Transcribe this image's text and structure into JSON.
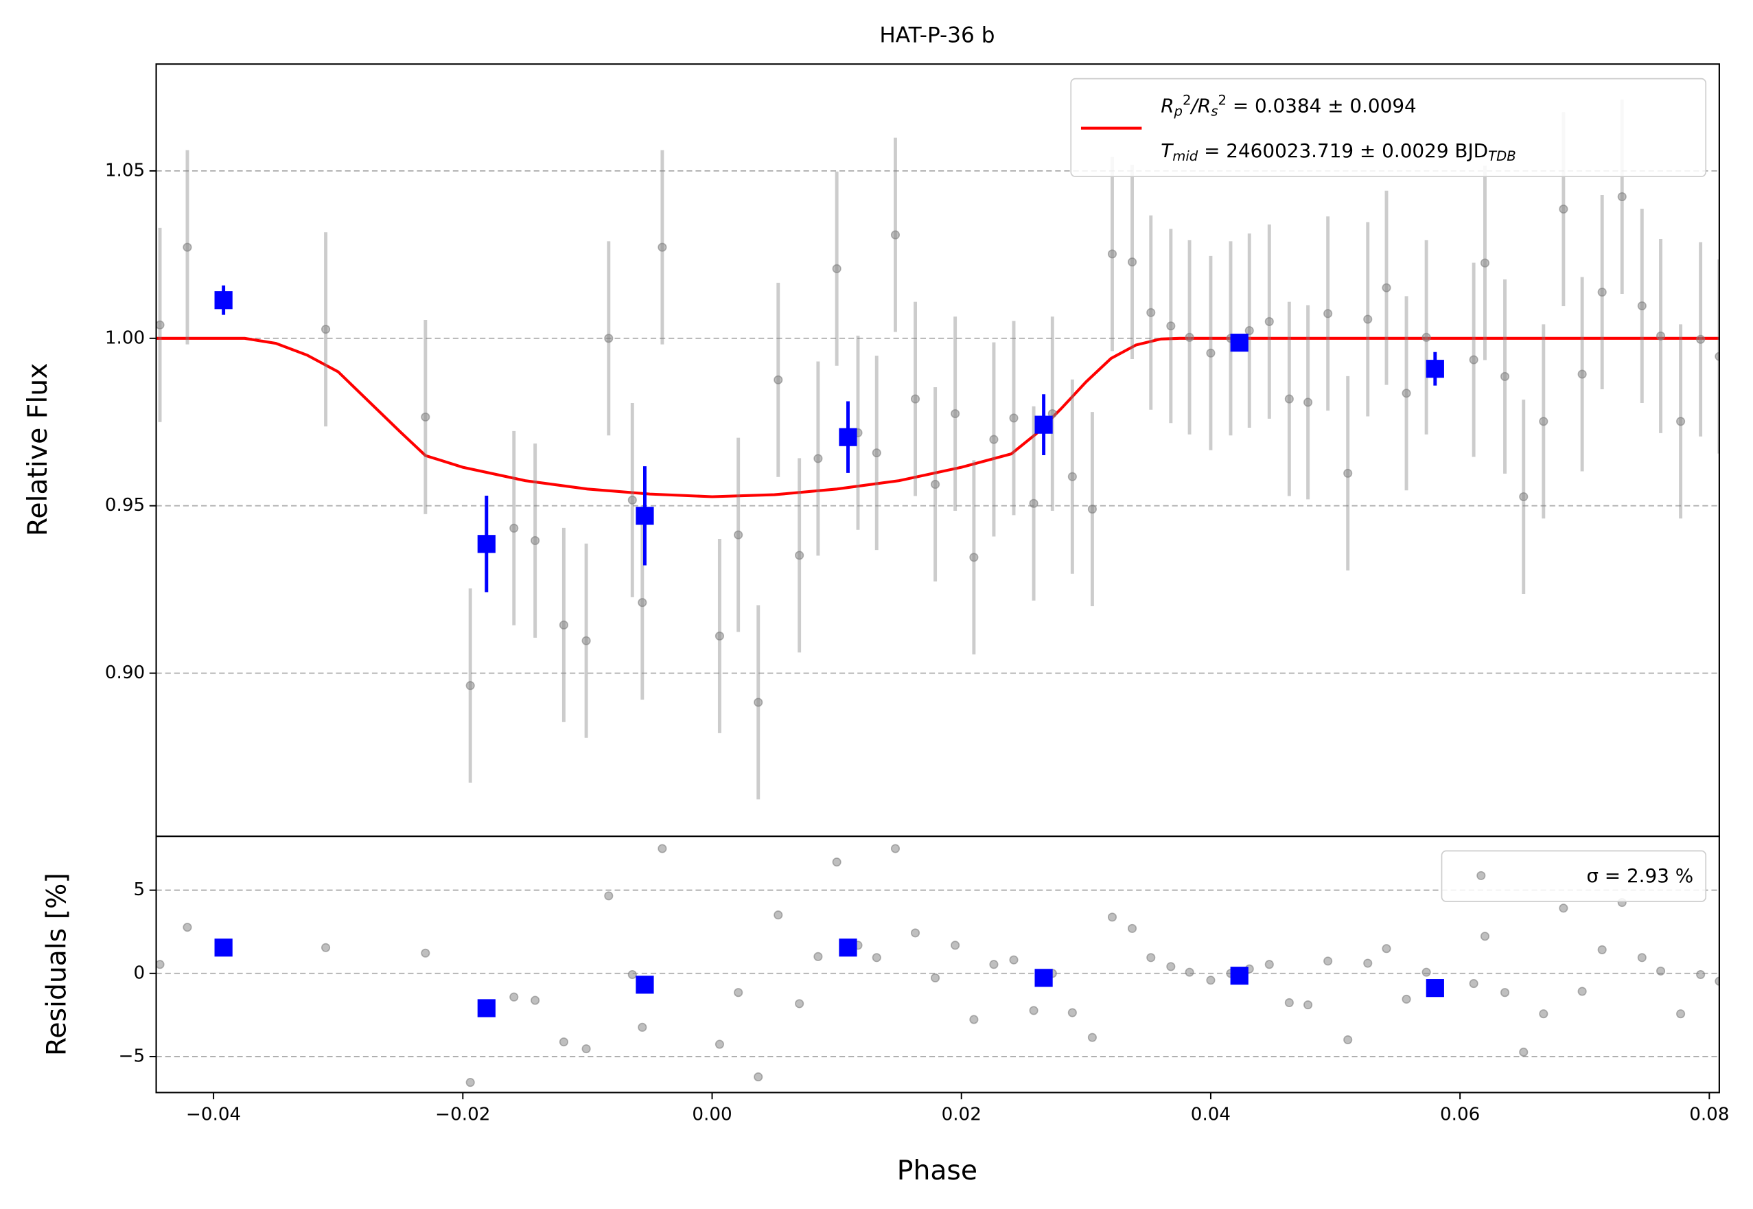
{
  "chart_data": [
    {
      "type": "scatter",
      "title": "HAT-P-36 b",
      "ylabel": "Relative Flux",
      "xlim": [
        -0.0446,
        0.0808
      ],
      "ylim": [
        0.8513,
        1.0819
      ],
      "yticks": [
        {
          "value": 0.9,
          "label": "0.90"
        },
        {
          "value": 0.95,
          "label": "0.95"
        },
        {
          "value": 1.0,
          "label": "1.00"
        },
        {
          "value": 1.05,
          "label": "1.05"
        }
      ],
      "grid": true,
      "legend_loc": "upper right",
      "series": [
        {
          "kind": "line",
          "color": "#ff0000",
          "name_lines": [
            [
              {
                "text": "R"
              },
              {
                "text": "p",
                "script": "sub"
              },
              {
                "text": "2",
                "script": "sup"
              },
              {
                "text": "/R"
              },
              {
                "text": "s",
                "script": "sub"
              },
              {
                "text": "2",
                "script": "sup"
              },
              {
                "text": " = 0.0384 ± 0.0094"
              }
            ],
            [
              {
                "text": "T"
              },
              {
                "text": "mid",
                "script": "sub"
              },
              {
                "text": " = 2460023.719 ± 0.0029 BJD"
              },
              {
                "text": "TDB",
                "script": "sub"
              }
            ]
          ],
          "x": [
            -0.0446,
            -0.0375,
            -0.035,
            -0.0325,
            -0.03,
            -0.0275,
            -0.025,
            -0.023,
            -0.02,
            -0.015,
            -0.01,
            -0.005,
            0,
            0.005,
            0.01,
            0.015,
            0.02,
            0.024,
            0.026,
            0.028,
            0.03,
            0.032,
            0.034,
            0.036,
            0.0375,
            0.0808
          ],
          "values": [
            1,
            1,
            0.9985,
            0.995,
            0.99,
            0.981,
            0.972,
            0.965,
            0.9615,
            0.9575,
            0.955,
            0.9535,
            0.9527,
            0.9533,
            0.955,
            0.9575,
            0.9615,
            0.9655,
            0.9715,
            0.979,
            0.987,
            0.994,
            0.998,
            0.9998,
            1,
            1
          ]
        },
        {
          "kind": "points",
          "color": "#808080",
          "x": [
            -0.0443,
            -0.0421,
            -0.031,
            -0.023,
            -0.0194,
            -0.0159,
            -0.0142,
            -0.0119,
            -0.0101,
            -0.0083,
            -0.0064,
            -0.0056,
            -0.004,
            0.0006,
            0.0021,
            0.0037,
            0.0053,
            0.007,
            0.0085,
            0.01,
            0.0117,
            0.0132,
            0.0147,
            0.0163,
            0.0179,
            0.0195,
            0.021,
            0.0226,
            0.0242,
            0.0258,
            0.0273,
            0.0289,
            0.0305,
            0.0321,
            0.0337,
            0.0352,
            0.0368,
            0.0383,
            0.04,
            0.0416,
            0.0431,
            0.0447,
            0.0463,
            0.0478,
            0.0494,
            0.051,
            0.0526,
            0.0541,
            0.0557,
            0.0573,
            0.0611,
            0.062,
            0.0636,
            0.0651,
            0.0667,
            0.0683,
            0.0698,
            0.0714,
            0.073,
            0.0746,
            0.0761,
            0.0777,
            0.0793,
            0.0808
          ],
          "values": [
            1.004,
            1.0272,
            1.0027,
            0.9765,
            0.8963,
            0.9433,
            0.9396,
            0.9144,
            0.9097,
            1.0,
            0.9517,
            0.9211,
            1.0272,
            0.9111,
            0.9413,
            0.8913,
            0.9876,
            0.9352,
            0.9641,
            1.0208,
            0.9718,
            0.9658,
            1.0309,
            0.9819,
            0.9564,
            0.9775,
            0.9346,
            0.9698,
            0.9762,
            0.9507,
            0.9775,
            0.9587,
            0.949,
            1.0252,
            1.0228,
            1.0077,
            1.0037,
            1.0003,
            0.9956,
            1.0,
            1.0023,
            1.005,
            0.9819,
            0.9809,
            1.0074,
            0.9597,
            1.0057,
            1.0151,
            0.9836,
            1.0003,
            0.9936,
            1.0225,
            0.9886,
            0.9527,
            0.9752,
            1.0386,
            0.9893,
            1.0138,
            1.0423,
            1.0097,
            1.0007,
            0.9752,
            0.9997,
            0.9946
          ],
          "errors": [
            0.029,
            0.029,
            0.029,
            0.029,
            0.029,
            0.029,
            0.029,
            0.029,
            0.029,
            0.029,
            0.029,
            0.029,
            0.029,
            0.029,
            0.029,
            0.029,
            0.029,
            0.029,
            0.029,
            0.029,
            0.029,
            0.029,
            0.029,
            0.029,
            0.029,
            0.029,
            0.029,
            0.029,
            0.029,
            0.029,
            0.029,
            0.029,
            0.029,
            0.029,
            0.029,
            0.029,
            0.029,
            0.029,
            0.029,
            0.029,
            0.029,
            0.029,
            0.029,
            0.029,
            0.029,
            0.029,
            0.029,
            0.029,
            0.029,
            0.029,
            0.029,
            0.029,
            0.029,
            0.029,
            0.029,
            0.029,
            0.029,
            0.029,
            0.029,
            0.029,
            0.029,
            0.029,
            0.029,
            0.029
          ]
        },
        {
          "kind": "binned",
          "color": "#0000ff",
          "x": [
            -0.0392,
            -0.0181,
            -0.0054,
            0.0109,
            0.0266,
            0.0423,
            0.058
          ],
          "values": [
            1.0114,
            0.9386,
            0.947,
            0.9705,
            0.9742,
            0.9987,
            0.9909
          ],
          "errors": [
            0.0044,
            0.0144,
            0.0148,
            0.0107,
            0.0091,
            0.002,
            0.005
          ]
        }
      ]
    },
    {
      "type": "scatter",
      "xlabel": "Phase",
      "ylabel": "Residuals [%]",
      "xlim": [
        -0.0446,
        0.0808
      ],
      "ylim": [
        -7.16,
        8.24
      ],
      "xticks": [
        {
          "value": -0.04,
          "label": "−0.04"
        },
        {
          "value": -0.02,
          "label": "−0.02"
        },
        {
          "value": 0,
          "label": "0.00"
        },
        {
          "value": 0.02,
          "label": "0.02"
        },
        {
          "value": 0.04,
          "label": "0.04"
        },
        {
          "value": 0.06,
          "label": "0.06"
        },
        {
          "value": 0.08,
          "label": "0.08"
        }
      ],
      "yticks": [
        {
          "value": -5,
          "label": "−5"
        },
        0,
        5
      ],
      "grid": true,
      "legend_loc": "upper right",
      "series": [
        {
          "kind": "points",
          "name": "σ = 2.93 %",
          "color": "#808080",
          "x": [
            -0.0443,
            -0.0421,
            -0.031,
            -0.023,
            -0.0194,
            -0.0159,
            -0.0142,
            -0.0119,
            -0.0101,
            -0.0083,
            -0.0064,
            -0.0056,
            -0.004,
            0.0006,
            0.0021,
            0.0037,
            0.0053,
            0.007,
            0.0085,
            0.01,
            0.0117,
            0.0132,
            0.0147,
            0.0163,
            0.0179,
            0.0195,
            0.021,
            0.0226,
            0.0242,
            0.0258,
            0.0273,
            0.0289,
            0.0305,
            0.0321,
            0.0337,
            0.0352,
            0.0368,
            0.0383,
            0.04,
            0.0416,
            0.0431,
            0.0447,
            0.0463,
            0.0478,
            0.0494,
            0.051,
            0.0526,
            0.0541,
            0.0557,
            0.0573,
            0.0611,
            0.062,
            0.0636,
            0.0651,
            0.0667,
            0.0683,
            0.0698,
            0.0714,
            0.073,
            0.0746,
            0.0761,
            0.0777,
            0.0793,
            0.0808
          ],
          "values": [
            0.54,
            2.77,
            1.55,
            1.22,
            -6.55,
            -1.42,
            -1.62,
            -4.12,
            -4.53,
            4.66,
            -0.07,
            -3.24,
            7.5,
            -4.26,
            -1.15,
            -6.22,
            3.51,
            -1.82,
            1.01,
            6.69,
            1.69,
            0.95,
            7.5,
            2.43,
            -0.27,
            1.69,
            -2.77,
            0.54,
            0.81,
            -2.23,
            0,
            -2.36,
            -3.85,
            3.38,
            2.7,
            0.95,
            0.41,
            0.07,
            -0.41,
            0,
            0.27,
            0.54,
            -1.76,
            -1.89,
            0.74,
            -3.99,
            0.61,
            1.49,
            -1.55,
            0.07,
            -0.61,
            2.23,
            -1.15,
            -4.73,
            -2.43,
            3.92,
            -1.08,
            1.42,
            4.26,
            0.95,
            0.14,
            -2.43,
            -0.07,
            -0.47
          ]
        },
        {
          "kind": "binned",
          "color": "#0000ff",
          "x": [
            -0.0392,
            -0.0181,
            -0.0054,
            0.0109,
            0.0266,
            0.0423,
            0.058
          ],
          "values": [
            1.55,
            -2.09,
            -0.68,
            1.55,
            -0.27,
            -0.14,
            -0.88
          ]
        }
      ]
    }
  ]
}
